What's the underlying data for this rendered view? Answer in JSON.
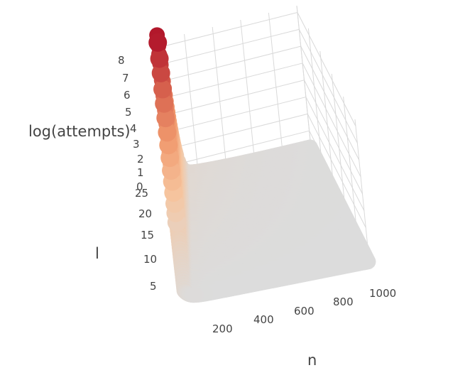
{
  "chart_data": {
    "type": "scatter3d",
    "axes": {
      "x": {
        "label": "n",
        "ticks": [
          "200",
          "400",
          "600",
          "800",
          "1000"
        ],
        "range": [
          0,
          1000
        ]
      },
      "y": {
        "label": "l",
        "ticks": [
          "5",
          "10",
          "15",
          "20",
          "25"
        ],
        "range": [
          1,
          28
        ]
      },
      "z": {
        "label": "log(attempts)",
        "ticks": [
          "0",
          "1",
          "2",
          "3",
          "4",
          "5",
          "6",
          "7",
          "8"
        ],
        "range": [
          0,
          8.4
        ]
      }
    },
    "surface": {
      "description_source": "points follow log(attempts) ≈ l·log(l / n) style decay; high at small n and large l",
      "n_values": [
        10,
        1000
      ],
      "l_values": [
        1,
        28
      ]
    },
    "peak_points": [
      {
        "n": 10,
        "l": 28,
        "log_attempts": 8.3
      },
      {
        "n": 10,
        "l": 27,
        "log_attempts": 7.6
      },
      {
        "n": 10,
        "l": 26,
        "log_attempts": 7.0
      },
      {
        "n": 10,
        "l": 25,
        "log_attempts": 6.3
      },
      {
        "n": 10,
        "l": 24,
        "log_attempts": 5.7
      },
      {
        "n": 10,
        "l": 23,
        "log_attempts": 5.1
      },
      {
        "n": 10,
        "l": 22,
        "log_attempts": 4.5
      },
      {
        "n": 10,
        "l": 21,
        "log_attempts": 4.0
      },
      {
        "n": 10,
        "l": 20,
        "log_attempts": 3.5
      },
      {
        "n": 10,
        "l": 19,
        "log_attempts": 3.0
      },
      {
        "n": 10,
        "l": 18,
        "log_attempts": 2.6
      },
      {
        "n": 10,
        "l": 17,
        "log_attempts": 2.2
      },
      {
        "n": 10,
        "l": 16,
        "log_attempts": 1.8
      },
      {
        "n": 10,
        "l": 15,
        "log_attempts": 1.5
      },
      {
        "n": 10,
        "l": 14,
        "log_attempts": 1.2
      }
    ],
    "colorscale": [
      "#dcdcdc",
      "#f6c6a0",
      "#f19a6e",
      "#d6604d",
      "#b2182b"
    ],
    "grid": true
  }
}
